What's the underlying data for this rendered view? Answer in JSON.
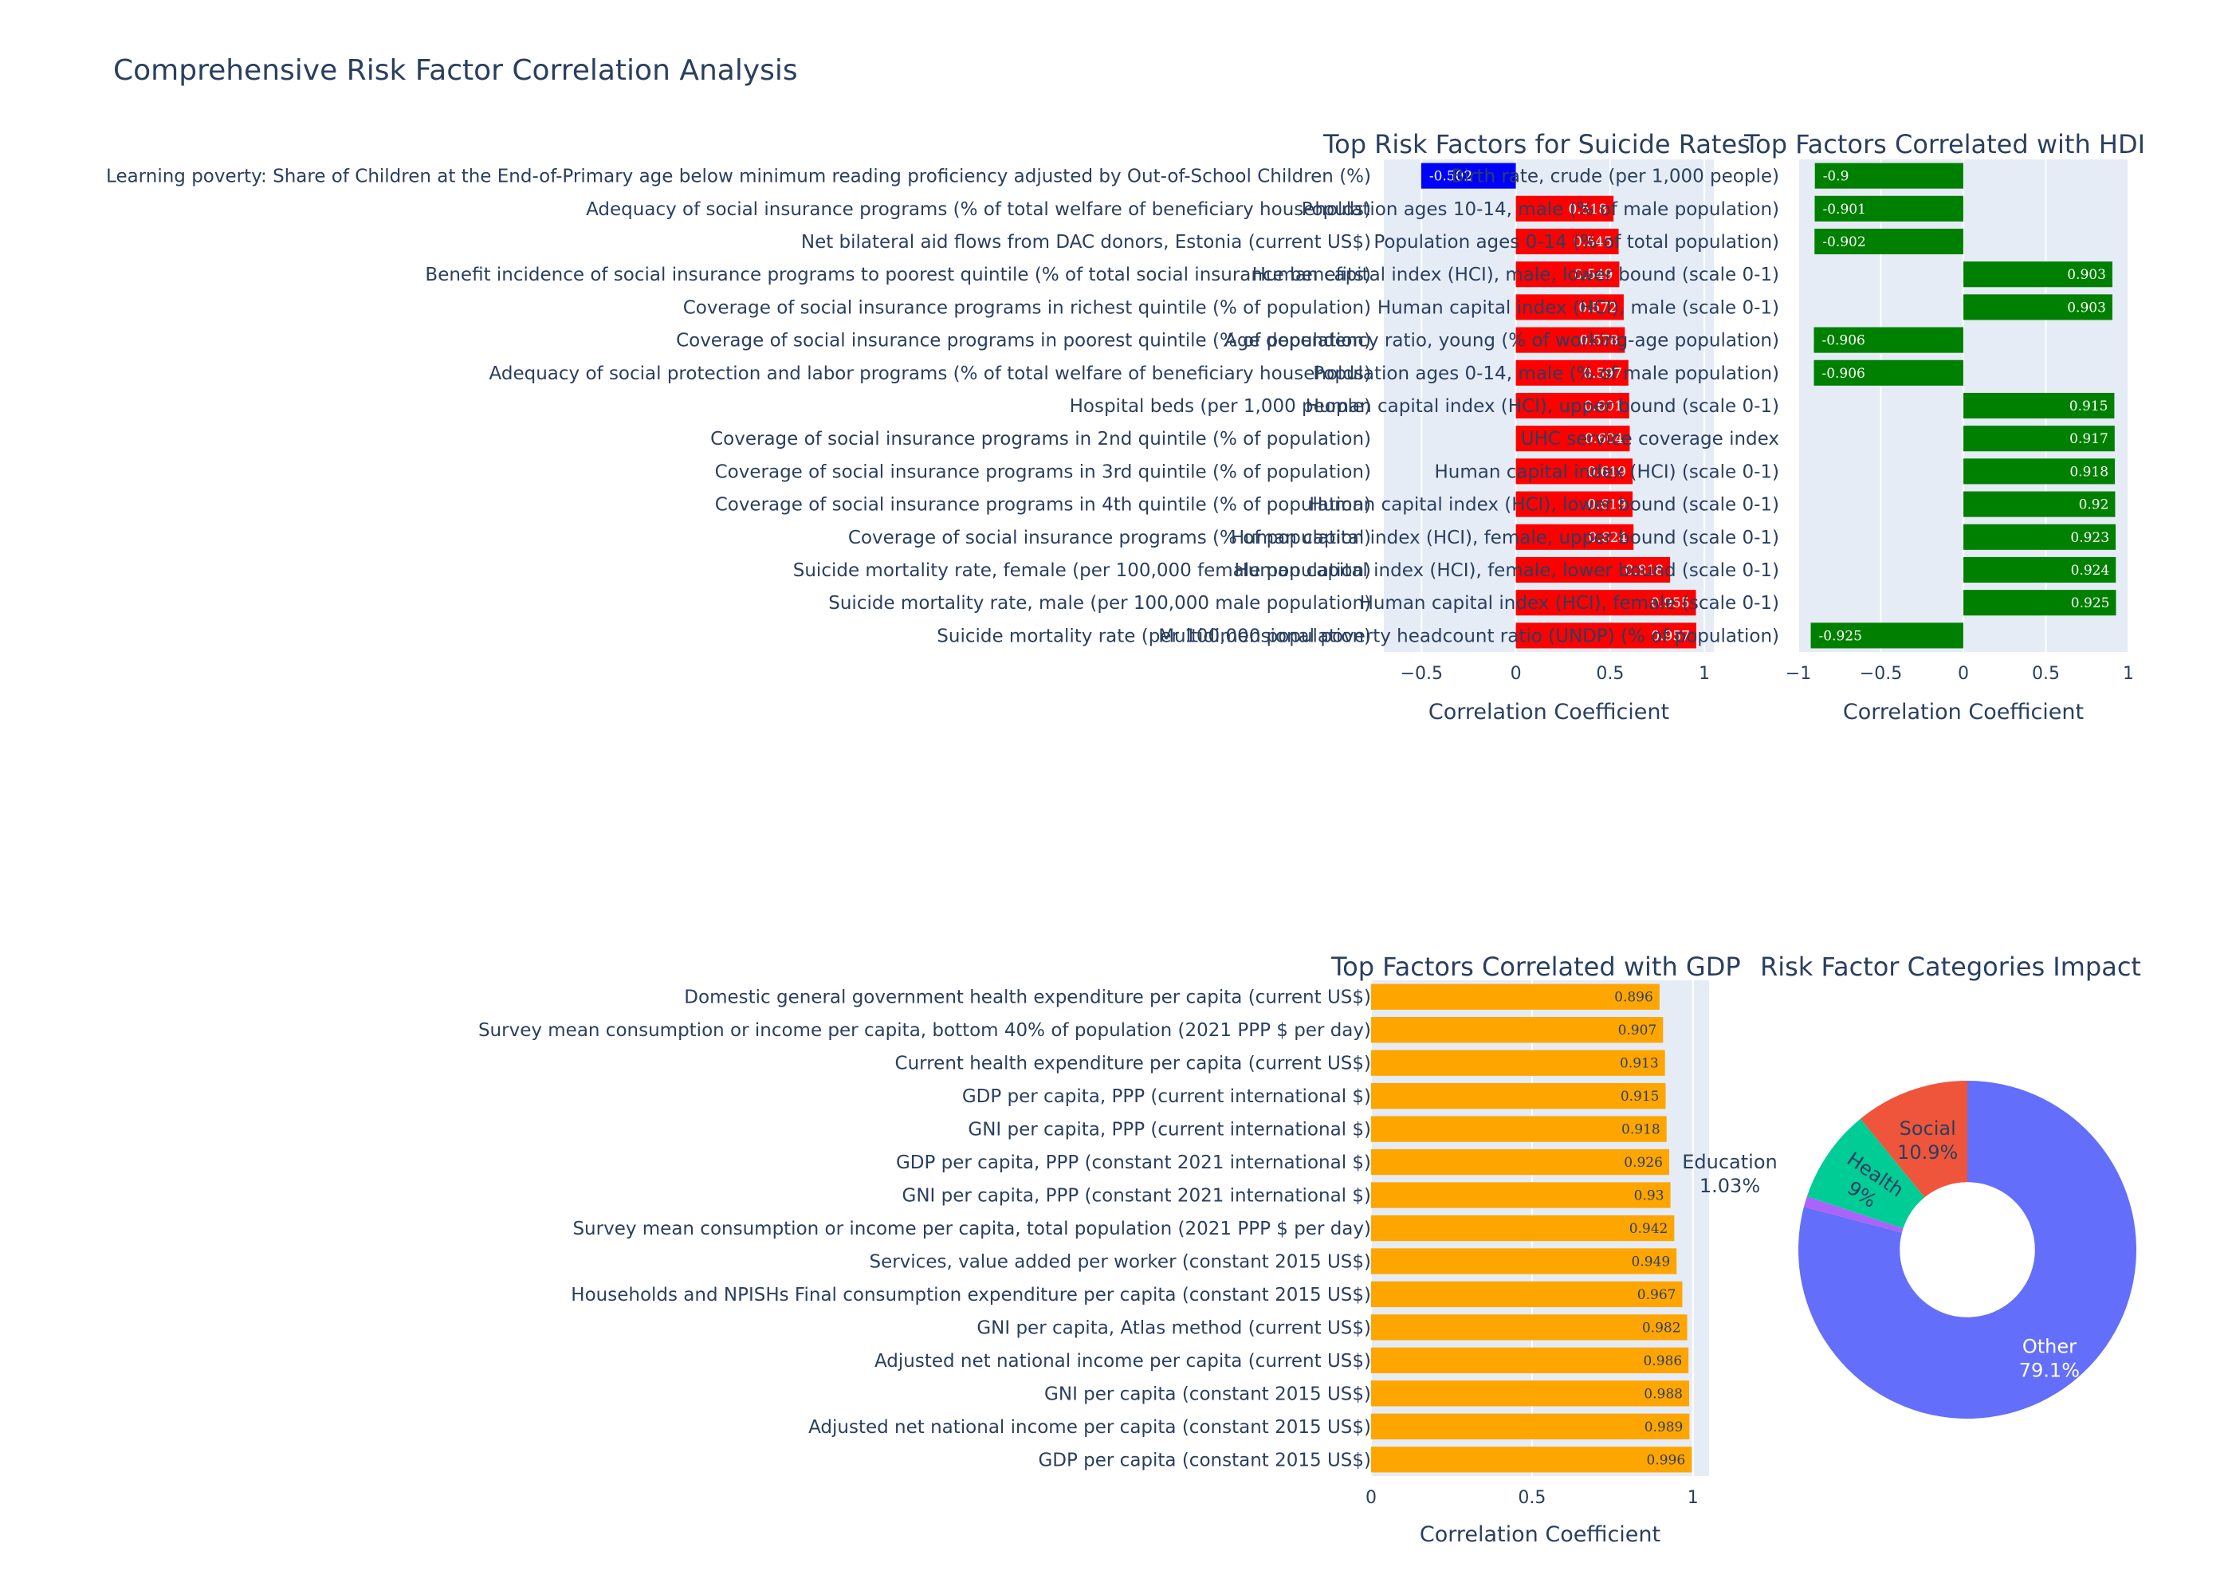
{
  "title": "Comprehensive Risk Factor Correlation Analysis",
  "colors": {
    "plot_bg": "#e5ecf6",
    "text": "#2a3f5f",
    "suicide_positive": "#ff0000",
    "suicide_negative": "#0000ff",
    "hdi": "#008000",
    "gdp": "#ffa500",
    "pie_other": "#636efa",
    "pie_education": "#ab63fa",
    "pie_health": "#00cc96",
    "pie_social": "#ef553b"
  },
  "chart_data": [
    {
      "type": "bar",
      "orientation": "horizontal",
      "title": "Top Risk Factors for Suicide Rates",
      "xlabel": "Correlation Coefficient",
      "xlim": [
        -0.7,
        1.05
      ],
      "xticks": [
        -0.5,
        0,
        0.5,
        1
      ],
      "xticklabels": [
        "−0.5",
        "0",
        "0.5",
        "1"
      ],
      "categories": [
        "Learning poverty: Share of Children at the End-of-Primary age below minimum reading proficiency adjusted by Out-of-School Children (%)",
        "Adequacy of social insurance programs (% of total welfare of beneficiary households)",
        "Net bilateral aid flows from DAC donors, Estonia (current US$)",
        "Benefit incidence of social insurance programs to poorest quintile (% of total social insurance benefits)",
        "Coverage of social insurance programs in richest quintile (% of population)",
        "Coverage of social insurance programs in poorest quintile (% of population)",
        "Adequacy of social protection and labor programs (% of total welfare of beneficiary households)",
        "Hospital beds (per 1,000 people)",
        "Coverage of social insurance programs in 2nd quintile (% of population)",
        "Coverage of social insurance programs in 3rd quintile (% of population)",
        "Coverage of social insurance programs in 4th quintile (% of population)",
        "Coverage of social insurance programs (% of population)",
        "Suicide mortality rate, female (per 100,000 female population)",
        "Suicide mortality rate, male (per 100,000 male population)",
        "Suicide mortality rate (per 100,000 population)"
      ],
      "values": [
        -0.502,
        0.518,
        0.545,
        0.549,
        0.572,
        0.578,
        0.597,
        0.601,
        0.604,
        0.619,
        0.619,
        0.624,
        0.818,
        0.955,
        0.957
      ],
      "labels": [
        "-0.502",
        "0.518",
        "0.545",
        "0.549",
        "0.572",
        "0.578",
        "0.597",
        "0.601",
        "0.604",
        "0.619",
        "0.619",
        "0.624",
        "0.818",
        "0.955",
        "0.957"
      ]
    },
    {
      "type": "bar",
      "orientation": "horizontal",
      "title": "Top Factors Correlated with HDI",
      "xlabel": "Correlation Coefficient",
      "xlim": [
        -1.0,
        1.0
      ],
      "xticks": [
        -1,
        -0.5,
        0,
        0.5,
        1
      ],
      "xticklabels": [
        "−1",
        "−0.5",
        "0",
        "0.5",
        "1"
      ],
      "categories": [
        "Birth rate, crude (per 1,000 people)",
        "Population ages 10-14, male (% of male population)",
        "Population ages 0-14 (% of total population)",
        "Human capital index (HCI), male, lower bound (scale 0-1)",
        "Human capital index (HCI), male (scale 0-1)",
        "Age dependency ratio, young (% of working-age population)",
        "Population ages 0-14, male (% of male population)",
        "Human capital index (HCI), upper bound (scale 0-1)",
        "UHC service coverage index",
        "Human capital index (HCI) (scale 0-1)",
        "Human capital index (HCI), lower bound (scale 0-1)",
        "Human capital index (HCI), female, upper bound (scale 0-1)",
        "Human capital index (HCI), female, lower bound (scale 0-1)",
        "Human capital index (HCI), female (scale 0-1)",
        "Multidimensional poverty headcount ratio (UNDP) (% of population)"
      ],
      "values": [
        -0.9,
        -0.901,
        -0.902,
        0.903,
        0.903,
        -0.906,
        -0.906,
        0.915,
        0.917,
        0.918,
        0.92,
        0.923,
        0.924,
        0.925,
        -0.925
      ],
      "labels": [
        "-0.9",
        "-0.901",
        "-0.902",
        "0.903",
        "0.903",
        "-0.906",
        "-0.906",
        "0.915",
        "0.917",
        "0.918",
        "0.92",
        "0.923",
        "0.924",
        "0.925",
        "-0.925"
      ]
    },
    {
      "type": "bar",
      "orientation": "horizontal",
      "title": "Top Factors Correlated with GDP",
      "xlabel": "Correlation Coefficient",
      "xlim": [
        0,
        1.05
      ],
      "xticks": [
        0,
        0.5,
        1
      ],
      "xticklabels": [
        "0",
        "0.5",
        "1"
      ],
      "categories": [
        "Domestic general government health expenditure per capita (current US$)",
        "Survey mean consumption or income per capita, bottom 40% of population (2021 PPP $ per day)",
        "Current health expenditure per capita (current US$)",
        "GDP per capita, PPP (current international $)",
        "GNI per capita, PPP (current international $)",
        "GDP per capita, PPP (constant 2021 international $)",
        "GNI per capita, PPP (constant 2021 international $)",
        "Survey mean consumption or income per capita, total population (2021 PPP $ per day)",
        "Services, value added per worker (constant 2015 US$)",
        "Households and NPISHs Final consumption expenditure per capita (constant 2015 US$)",
        "GNI per capita, Atlas method (current US$)",
        "Adjusted net national income per capita (current US$)",
        "GNI per capita (constant 2015 US$)",
        "Adjusted net national income per capita (constant 2015 US$)",
        "GDP per capita (constant 2015 US$)"
      ],
      "values": [
        0.896,
        0.907,
        0.913,
        0.915,
        0.918,
        0.926,
        0.93,
        0.942,
        0.949,
        0.967,
        0.982,
        0.986,
        0.988,
        0.989,
        0.996
      ],
      "labels": [
        "0.896",
        "0.907",
        "0.913",
        "0.915",
        "0.918",
        "0.926",
        "0.93",
        "0.942",
        "0.949",
        "0.967",
        "0.982",
        "0.986",
        "0.988",
        "0.989",
        "0.996"
      ]
    },
    {
      "type": "pie",
      "hole": 0.4,
      "title": "Risk Factor Categories Impact",
      "slices": [
        {
          "label": "Other",
          "value": 79.1,
          "text": "79.1%"
        },
        {
          "label": "Education",
          "value": 1.03,
          "text": "1.03%"
        },
        {
          "label": "Health",
          "value": 9.0,
          "text": "9%"
        },
        {
          "label": "Social",
          "value": 10.9,
          "text": "10.9%"
        }
      ]
    }
  ]
}
